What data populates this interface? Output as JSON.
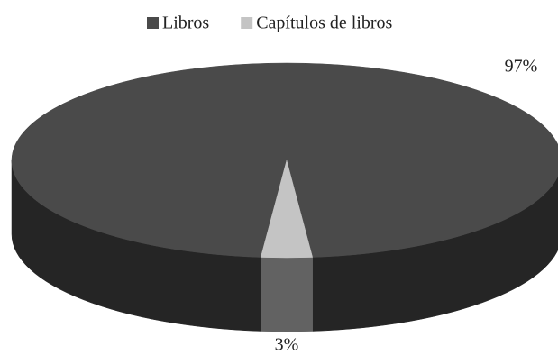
{
  "chart_data": {
    "type": "pie",
    "categories": [
      "Libros",
      "Capítulos de libros"
    ],
    "values": [
      97,
      3
    ],
    "value_labels": [
      "97%",
      "3%"
    ],
    "colors": [
      "#4a4a4a",
      "#c4c4c4"
    ],
    "legend": "top"
  }
}
